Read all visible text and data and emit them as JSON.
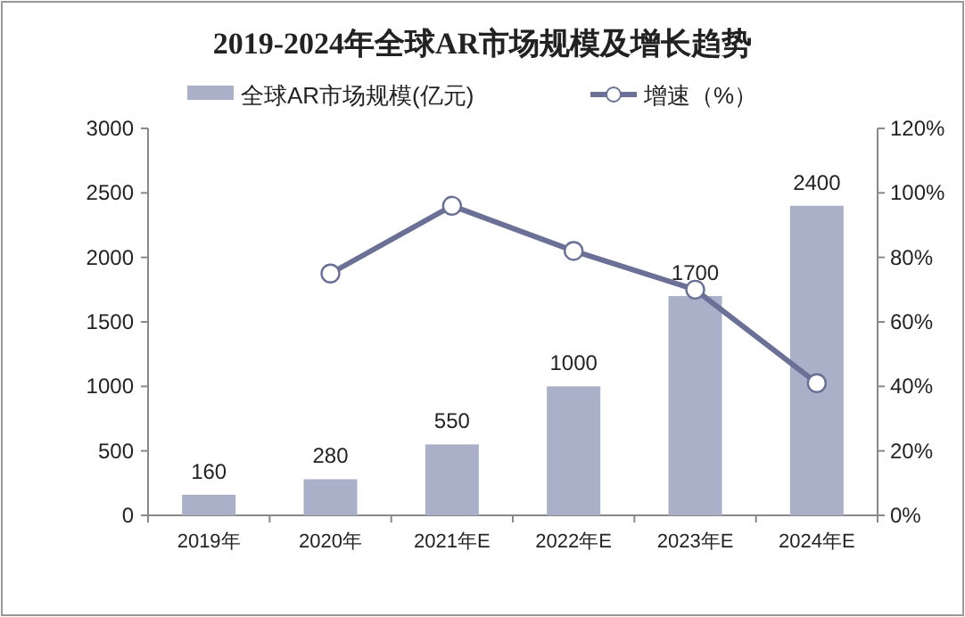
{
  "chart_data": {
    "type": "bar",
    "title": "2019-2024年全球AR市场规模及增长趋势",
    "categories": [
      "2019年",
      "2020年",
      "2021年E",
      "2022年E",
      "2023年E",
      "2024年E"
    ],
    "series": [
      {
        "name": "全球AR市场规模(亿元)",
        "color": "#a9b0c8",
        "values": [
          160,
          280,
          550,
          1000,
          1700,
          2400
        ],
        "value_labels": [
          "160",
          "280",
          "550",
          "1000",
          "1700",
          "2400"
        ]
      },
      {
        "name": "增速（%）",
        "type": "line",
        "axis": "y2",
        "color": "#6b7096",
        "marker": "circle",
        "values": [
          null,
          75,
          96,
          82,
          70,
          41
        ]
      }
    ],
    "ylim": [
      0,
      3000
    ],
    "yticks": [
      0,
      500,
      1000,
      1500,
      2000,
      2500,
      3000
    ],
    "y2lim": [
      0,
      120
    ],
    "y2ticks": [
      {
        "value": 0,
        "label": "0%"
      },
      {
        "value": 20,
        "label": "20%"
      },
      {
        "value": 40,
        "label": "40%"
      },
      {
        "value": 60,
        "label": "60%"
      },
      {
        "value": 80,
        "label": "80%"
      },
      {
        "value": 100,
        "label": "100%"
      },
      {
        "value": 120,
        "label": "120%"
      }
    ],
    "legend": "top"
  }
}
